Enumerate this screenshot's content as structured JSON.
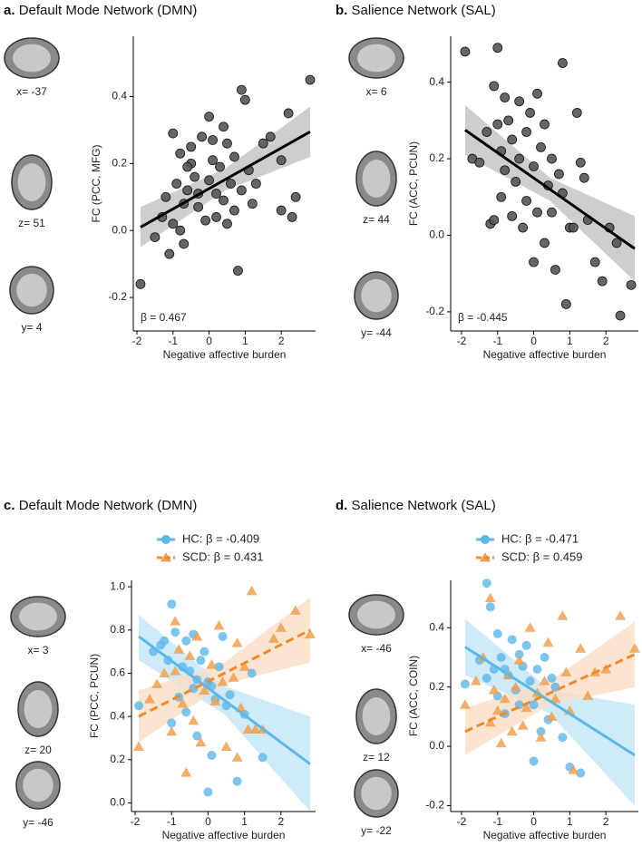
{
  "chart_data": [
    {
      "type": "scatter",
      "panel_label": "a.",
      "title": "Default Mode Network (DMN)",
      "slice_labels": [
        "x= -37",
        "z= 51",
        "y= 4"
      ],
      "xlabel": "Negative affective burden",
      "ylabel": "FC (PCC, MFG)",
      "annotation": "β = 0.467",
      "xlim": [
        -2.1,
        2.95
      ],
      "ylim": [
        -0.3,
        0.58
      ],
      "xticks": [
        -2,
        -1,
        0,
        1,
        2
      ],
      "yticks": [
        -0.2,
        {
          "value": 0,
          "label": "0.0"
        },
        0.2,
        0.4
      ],
      "series": [
        {
          "color": "#555555",
          "marker": "circle",
          "x": [
            -1.9,
            -1.5,
            -1.3,
            -1.2,
            -1.1,
            -1.0,
            -1.0,
            -0.9,
            -0.8,
            -0.8,
            -0.7,
            -0.7,
            -0.6,
            -0.5,
            -0.5,
            -0.4,
            -0.3,
            -0.3,
            -0.2,
            -0.1,
            0.0,
            0.0,
            0.1,
            0.1,
            0.2,
            0.2,
            0.3,
            0.4,
            0.4,
            0.5,
            0.6,
            0.7,
            0.7,
            0.8,
            0.9,
            0.9,
            1.0,
            1.1,
            1.2,
            1.3,
            1.5,
            1.7,
            2.0,
            2.2,
            2.3,
            2.4,
            2.8,
            2.0,
            -0.6,
            0.5
          ],
          "values": [
            -0.16,
            -0.02,
            0.04,
            0.1,
            -0.07,
            0.29,
            0.02,
            0.14,
            0.0,
            0.23,
            0.08,
            -0.04,
            0.12,
            0.25,
            0.2,
            0.16,
            0.11,
            0.07,
            0.28,
            0.03,
            0.34,
            0.15,
            0.27,
            0.21,
            0.11,
            0.04,
            0.19,
            0.31,
            0.09,
            0.02,
            0.14,
            0.22,
            0.06,
            -0.12,
            0.42,
            0.12,
            0.39,
            0.18,
            0.08,
            0.14,
            0.26,
            0.28,
            0.21,
            0.35,
            0.04,
            0.1,
            0.45,
            0.06,
            0.19,
            0.26
          ],
          "fit": {
            "color": "#000000",
            "band": "#bdbdbd",
            "dashed": false,
            "x": [
              -1.9,
              0.45,
              2.8
            ],
            "y": [
              0.01,
              0.1525,
              0.295
            ],
            "lower": [
              -0.05,
              0.12,
              0.22
            ],
            "upper": [
              0.07,
              0.185,
              0.37
            ]
          }
        }
      ]
    },
    {
      "type": "scatter",
      "panel_label": "b.",
      "title": "Salience Network (SAL)",
      "slice_labels": [
        "x= 6",
        "z= 44",
        "y= -44"
      ],
      "xlabel": "Negative affective burden",
      "ylabel": "FC (ACC, PCUN)",
      "annotation": "β = -0.445",
      "xlim": [
        -2.3,
        2.9
      ],
      "ylim": [
        -0.25,
        0.52
      ],
      "xticks": [
        -2,
        -1,
        0,
        1,
        2
      ],
      "yticks": [
        -0.2,
        {
          "value": 0,
          "label": "0.0"
        },
        0.2,
        0.4
      ],
      "series": [
        {
          "color": "#555555",
          "marker": "circle",
          "x": [
            -1.9,
            -1.7,
            -1.5,
            -1.3,
            -1.2,
            -1.1,
            -1.0,
            -1.0,
            -0.9,
            -0.9,
            -0.8,
            -0.8,
            -0.7,
            -0.6,
            -0.6,
            -0.5,
            -0.4,
            -0.4,
            -0.3,
            -0.2,
            -0.2,
            -0.1,
            0.0,
            0.0,
            0.1,
            0.1,
            0.2,
            0.3,
            0.3,
            0.4,
            0.5,
            0.5,
            0.6,
            0.7,
            0.8,
            0.8,
            0.9,
            1.0,
            1.1,
            1.2,
            1.3,
            1.4,
            1.5,
            1.7,
            1.9,
            2.1,
            2.3,
            2.4,
            2.7,
            -1.1
          ],
          "values": [
            0.48,
            0.2,
            0.19,
            0.27,
            0.03,
            0.39,
            0.49,
            0.29,
            0.22,
            0.1,
            0.36,
            0.17,
            0.3,
            0.05,
            0.25,
            0.14,
            0.35,
            0.2,
            0.02,
            0.27,
            0.09,
            0.32,
            0.18,
            -0.07,
            0.37,
            0.06,
            0.23,
            0.29,
            -0.02,
            0.13,
            0.2,
            0.06,
            -0.09,
            0.16,
            0.45,
            0.11,
            -0.18,
            0.02,
            0.02,
            0.32,
            0.19,
            0.15,
            0.04,
            -0.07,
            -0.12,
            0.02,
            -0.02,
            -0.21,
            -0.13,
            0.04
          ],
          "fit": {
            "color": "#000000",
            "band": "#bdbdbd",
            "dashed": false,
            "x": [
              -1.9,
              0.45,
              2.8
            ],
            "y": [
              0.275,
              0.12,
              -0.035
            ],
            "lower": [
              0.21,
              0.09,
              -0.12
            ],
            "upper": [
              0.34,
              0.15,
              0.05
            ]
          }
        }
      ]
    },
    {
      "type": "scatter",
      "panel_label": "c.",
      "title": "Default Mode Network (DMN)",
      "slice_labels": [
        "x= 3",
        "z= 20",
        "y= -46"
      ],
      "xlabel": "Negative affective burden",
      "ylabel": "FC (PCC, PCUN)",
      "xlim": [
        -2.1,
        2.95
      ],
      "ylim": [
        -0.04,
        1.03
      ],
      "xticks": [
        -2,
        -1,
        0,
        1,
        2
      ],
      "yticks": [
        {
          "value": 0,
          "label": "0.0"
        },
        0.2,
        0.4,
        0.6,
        0.8,
        {
          "value": 1,
          "label": "1.0"
        }
      ],
      "series": [
        {
          "name": "HC: β = -0.409",
          "color": "#5bb8ea",
          "marker": "circle",
          "x": [
            -1.9,
            -1.5,
            -1.3,
            -1.2,
            -1.1,
            -1.0,
            -1.0,
            -0.9,
            -0.8,
            -0.7,
            -0.6,
            -0.6,
            -0.5,
            -0.4,
            -0.4,
            -0.3,
            -0.2,
            -0.1,
            0.0,
            0.0,
            0.1,
            0.2,
            0.3,
            0.4,
            0.5,
            0.6,
            0.8,
            1.0,
            1.2,
            1.5,
            -0.3,
            0.1
          ],
          "values": [
            0.45,
            0.7,
            0.73,
            0.75,
            0.66,
            0.92,
            0.37,
            0.79,
            0.49,
            0.63,
            0.42,
            0.75,
            0.61,
            0.53,
            0.78,
            0.57,
            0.66,
            0.7,
            0.05,
            0.56,
            0.54,
            0.48,
            0.63,
            0.77,
            0.45,
            0.5,
            0.1,
            0.41,
            0.6,
            0.21,
            0.31,
            0.22
          ],
          "fit": {
            "color": "#5bb8ea",
            "band": "#bfe3f7",
            "dashed": false,
            "x": [
              -1.9,
              0.45,
              2.8
            ],
            "y": [
              0.77,
              0.475,
              0.18
            ],
            "lower": [
              0.66,
              0.41,
              -0.04
            ],
            "upper": [
              0.87,
              0.54,
              0.4
            ]
          }
        },
        {
          "name": "SCD: β =  0.431",
          "color": "#f0a050",
          "marker": "triangle",
          "x": [
            -1.9,
            -1.6,
            -1.4,
            -1.2,
            -1.0,
            -0.9,
            -0.9,
            -0.8,
            -0.7,
            -0.6,
            -0.5,
            -0.4,
            -0.3,
            -0.2,
            -0.1,
            0.1,
            0.2,
            0.3,
            0.4,
            0.5,
            0.7,
            0.8,
            0.9,
            1.0,
            1.1,
            1.2,
            1.3,
            1.5,
            1.8,
            2.0,
            2.4,
            2.8,
            0.8
          ],
          "values": [
            0.26,
            0.48,
            0.55,
            0.6,
            0.33,
            0.84,
            0.61,
            0.71,
            0.46,
            0.14,
            0.68,
            0.38,
            0.77,
            0.28,
            0.52,
            0.64,
            0.47,
            0.82,
            0.56,
            0.26,
            0.58,
            0.74,
            0.44,
            0.63,
            0.34,
            0.98,
            0.34,
            0.34,
            0.76,
            0.81,
            0.89,
            0.78,
            0.21
          ],
          "fit": {
            "color": "#ee8a2c",
            "band": "#fbdcc0",
            "dashed": true,
            "x": [
              -1.9,
              0.45,
              2.8
            ],
            "y": [
              0.4,
              0.6,
              0.8
            ],
            "lower": [
              0.28,
              0.55,
              0.65
            ],
            "upper": [
              0.52,
              0.65,
              0.95
            ]
          }
        }
      ]
    },
    {
      "type": "scatter",
      "panel_label": "d.",
      "title": "Salience Network (SAL)",
      "slice_labels": [
        "x= -46",
        "z= 12",
        "y= -22"
      ],
      "xlabel": "Negative affective burden",
      "ylabel": "FC (ACC, COIN)",
      "xlim": [
        -2.3,
        2.9
      ],
      "ylim": [
        -0.22,
        0.56
      ],
      "xticks": [
        -2,
        -1,
        0,
        1,
        2
      ],
      "yticks": [
        -0.2,
        {
          "value": 0,
          "label": "0.0"
        },
        0.2,
        0.4
      ],
      "series": [
        {
          "name": "HC: β = -0.471",
          "color": "#5bb8ea",
          "marker": "circle",
          "x": [
            -1.9,
            -1.5,
            -1.3,
            -1.3,
            -1.2,
            -1.1,
            -1.0,
            -1.0,
            -0.9,
            -0.8,
            -0.7,
            -0.6,
            -0.5,
            -0.4,
            -0.4,
            -0.3,
            -0.2,
            -0.1,
            0.0,
            0.1,
            0.2,
            0.3,
            0.4,
            0.5,
            0.6,
            0.8,
            1.0,
            1.3,
            -0.8,
            0.0
          ],
          "values": [
            0.21,
            0.29,
            0.55,
            0.23,
            0.47,
            0.26,
            0.38,
            0.17,
            0.3,
            0.11,
            0.24,
            0.36,
            0.19,
            0.31,
            0.14,
            0.27,
            0.34,
            0.22,
            0.14,
            0.26,
            0.05,
            0.3,
            0.09,
            0.23,
            0.2,
            0.03,
            -0.07,
            -0.09,
            0.26,
            -0.05
          ],
          "fit": {
            "color": "#5bb8ea",
            "band": "#bfe3f7",
            "dashed": false,
            "x": [
              -1.9,
              0.45,
              2.8
            ],
            "y": [
              0.335,
              0.1525,
              -0.03
            ],
            "lower": [
              0.24,
              0.11,
              -0.2
            ],
            "upper": [
              0.43,
              0.19,
              0.14
            ]
          }
        },
        {
          "name": "SCD: β =  0.459",
          "color": "#f0a050",
          "marker": "triangle",
          "x": [
            -1.9,
            -1.6,
            -1.4,
            -1.2,
            -1.1,
            -1.0,
            -0.9,
            -0.8,
            -0.7,
            -0.6,
            -0.5,
            -0.4,
            -0.3,
            -0.2,
            -0.1,
            0.1,
            0.2,
            0.3,
            0.4,
            0.5,
            0.6,
            0.8,
            0.9,
            1.0,
            1.1,
            1.3,
            1.5,
            1.7,
            2.0,
            2.4,
            2.8,
            -1.2
          ],
          "values": [
            0.14,
            0.22,
            0.3,
            0.08,
            0.19,
            0.12,
            0.01,
            0.16,
            0.24,
            0.05,
            0.2,
            0.29,
            0.07,
            0.13,
            0.4,
            0.18,
            0.03,
            0.22,
            0.35,
            0.1,
            0.16,
            0.44,
            0.25,
            0.12,
            -0.08,
            0.33,
            0.17,
            0.25,
            0.26,
            0.44,
            0.33,
            0.5
          ],
          "fit": {
            "color": "#ee8a2c",
            "band": "#fbdcc0",
            "dashed": true,
            "x": [
              -1.9,
              0.45,
              2.8
            ],
            "y": [
              0.05,
              0.18,
              0.31
            ],
            "lower": [
              -0.03,
              0.14,
              0.2
            ],
            "upper": [
              0.13,
              0.22,
              0.42
            ]
          }
        }
      ]
    }
  ]
}
